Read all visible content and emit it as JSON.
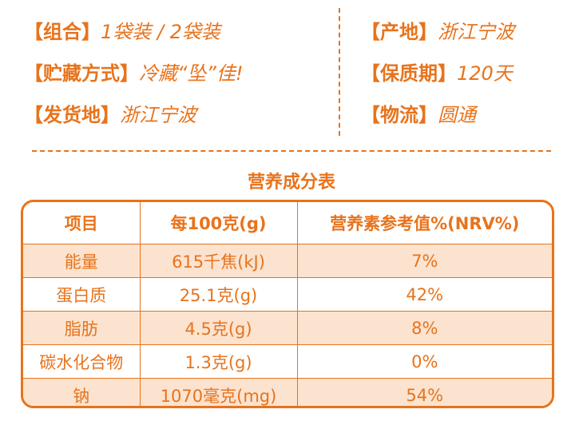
{
  "info_left": [
    {
      "label": "【组合】",
      "value": "1袋装 / 2袋装"
    },
    {
      "label": "【贮藏方式】",
      "value": "冷藏“坠”佳!"
    },
    {
      "label": "【发货地】",
      "value": "浙江宁波"
    }
  ],
  "info_right": [
    {
      "label": "【产地】",
      "value": "浙江宁波"
    },
    {
      "label": "【保质期】",
      "value": "120天"
    },
    {
      "label": "【物流】",
      "value": "圆通"
    }
  ],
  "nutrition": {
    "title": "营养成分表",
    "headers": [
      "项目",
      "每100克(g)",
      "营养素参考值%(NRV%)"
    ],
    "rows": [
      [
        "能量",
        "615千焦(kJ)",
        "7%"
      ],
      [
        "蛋白质",
        "25.1克(g)",
        "42%"
      ],
      [
        "脂肪",
        "4.5克(g)",
        "8%"
      ],
      [
        "碳水化合物",
        "1.3克(g)",
        "0%"
      ],
      [
        "钠",
        "1070毫克(mg)",
        "54%"
      ]
    ]
  },
  "colors": {
    "accent": "#e8731c",
    "shade": "#fbe3cf"
  }
}
